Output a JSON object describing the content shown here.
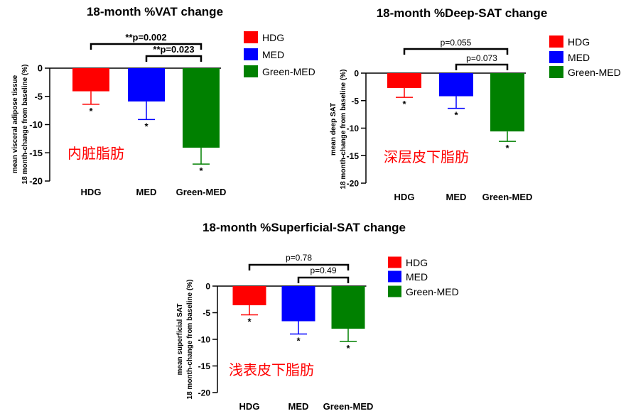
{
  "chart_data": [
    {
      "type": "bar",
      "title": "18-month %VAT change",
      "ylabel_line1": "mean visceral adipose tissue",
      "ylabel_line2": "18 month-change from baseline (%)",
      "xlabel": "",
      "categories": [
        "HDG",
        "MED",
        "Green-MED"
      ],
      "values": [
        -4.1,
        -5.9,
        -14.1
      ],
      "errors": [
        2.3,
        3.2,
        2.9
      ],
      "colors": [
        "#ff0000",
        "#0000ff",
        "#008000"
      ],
      "significance": [
        "*",
        "*",
        "*"
      ],
      "ylim": [
        -20,
        0
      ],
      "yticks": [
        "0",
        "-5",
        "-10",
        "-15",
        "-20"
      ],
      "comparisons": [
        {
          "label": "**p=0.002",
          "from": 0,
          "to": 2
        },
        {
          "label": "**p=0.023",
          "from": 1,
          "to": 2
        }
      ],
      "annotation": "内脏脂肪",
      "legend": [
        "HDG",
        "MED",
        "Green-MED"
      ],
      "legend_position": "right"
    },
    {
      "type": "bar",
      "title": "18-month %Deep-SAT change",
      "ylabel_line1": "mean deep SAT",
      "ylabel_line2": "18 month-change from baseline (%)",
      "xlabel": "",
      "categories": [
        "HDG",
        "MED",
        "Green-MED"
      ],
      "values": [
        -2.7,
        -4.2,
        -10.6
      ],
      "errors": [
        1.7,
        2.2,
        1.8
      ],
      "colors": [
        "#ff0000",
        "#0000ff",
        "#008000"
      ],
      "significance": [
        "*",
        "*",
        "*"
      ],
      "ylim": [
        -20,
        0
      ],
      "yticks": [
        "0",
        "-5",
        "-10",
        "-15",
        "-20"
      ],
      "comparisons": [
        {
          "label": "p=0.055",
          "from": 0,
          "to": 2
        },
        {
          "label": "p=0.073",
          "from": 1,
          "to": 2
        }
      ],
      "annotation": "深层皮下脂肪",
      "legend": [
        "HDG",
        "MED",
        "Green-MED"
      ],
      "legend_position": "right"
    },
    {
      "type": "bar",
      "title": "18-month %Superficial-SAT change",
      "ylabel_line1": "mean superficial SAT",
      "ylabel_line2": "18 month-change from baseline (%)",
      "xlabel": "",
      "categories": [
        "HDG",
        "MED",
        "Green-MED"
      ],
      "values": [
        -3.6,
        -6.6,
        -8.0
      ],
      "errors": [
        1.8,
        2.4,
        2.4
      ],
      "colors": [
        "#ff0000",
        "#0000ff",
        "#008000"
      ],
      "significance": [
        "*",
        "*",
        "*"
      ],
      "ylim": [
        -20,
        0
      ],
      "yticks": [
        "0",
        "-5",
        "-10",
        "-15",
        "-20"
      ],
      "comparisons": [
        {
          "label": "p=0.78",
          "from": 0,
          "to": 2
        },
        {
          "label": "p=0.49",
          "from": 1,
          "to": 2
        }
      ],
      "annotation": "浅表皮下脂肪",
      "legend": [
        "HDG",
        "MED",
        "Green-MED"
      ],
      "legend_position": "right"
    }
  ]
}
